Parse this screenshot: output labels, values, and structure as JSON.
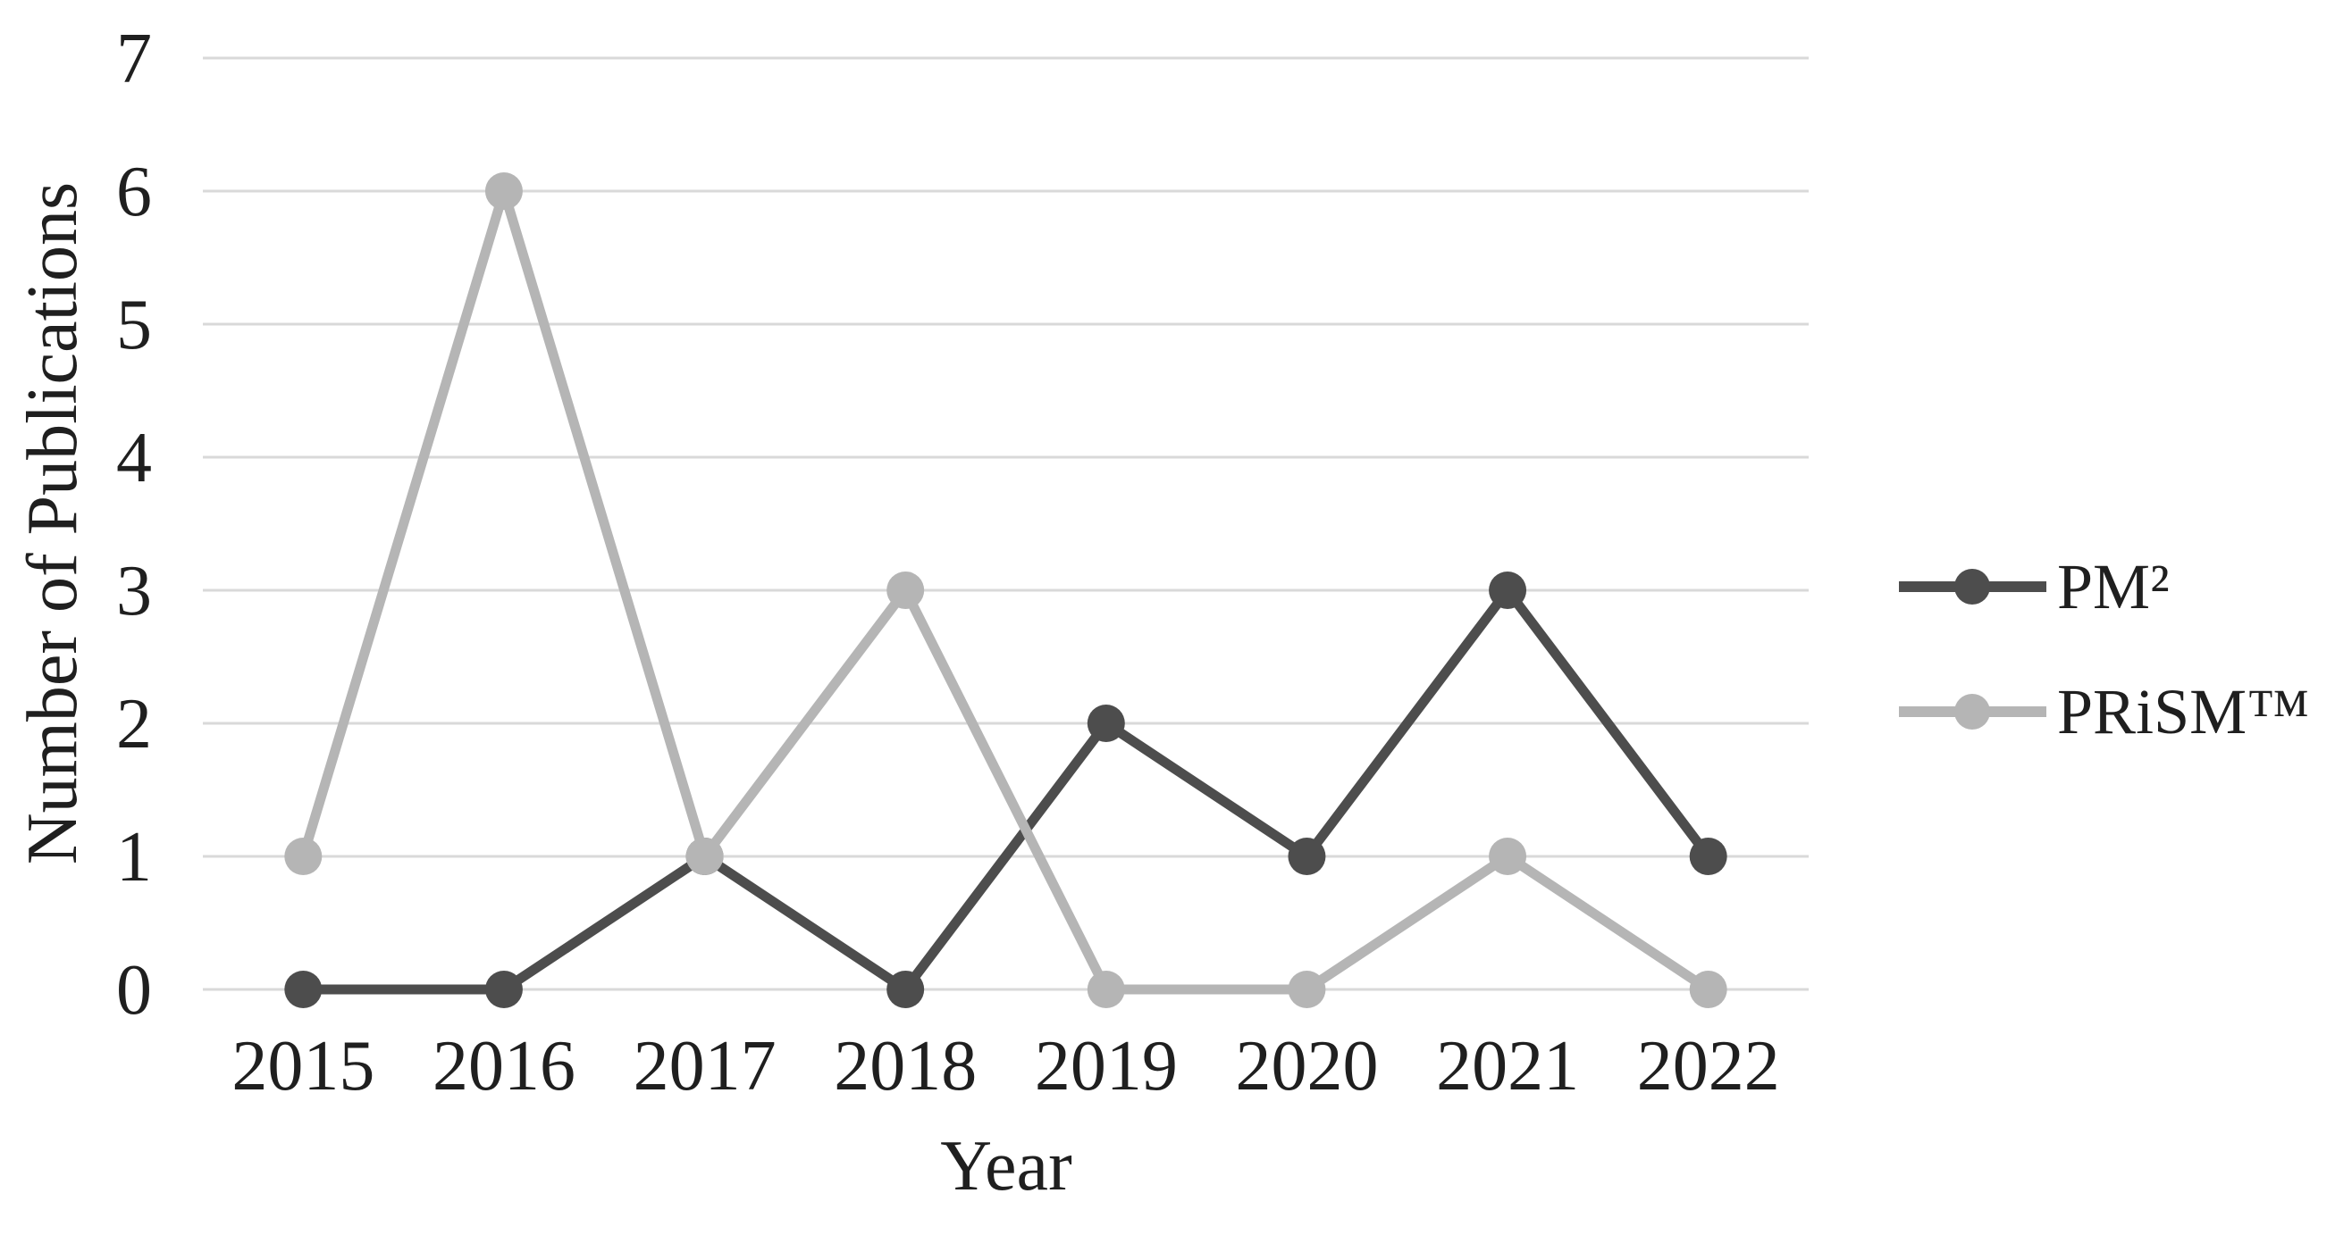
{
  "chart_data": {
    "type": "line",
    "title": "",
    "categories": [
      "2015",
      "2016",
      "2017",
      "2018",
      "2019",
      "2020",
      "2021",
      "2022"
    ],
    "series": [
      {
        "name": "PM²",
        "color": "#4d4d4d",
        "values": [
          0,
          0,
          1,
          0,
          2,
          1,
          3,
          1
        ]
      },
      {
        "name": "PRiSM™",
        "color": "#b5b5b5",
        "values": [
          1,
          6,
          1,
          3,
          0,
          0,
          1,
          0
        ]
      }
    ],
    "xlabel": "Year",
    "ylabel": "Number of Publications",
    "ylim": [
      0,
      7
    ],
    "ytick_step": 1,
    "yticks": [
      "0",
      "1",
      "2",
      "3",
      "4",
      "5",
      "6",
      "7"
    ],
    "grid": "horizontal-only",
    "gridline_color": "#d9d9d9",
    "text_color": "#1f1f1f",
    "background_color": "#ffffff",
    "legend_position": "right",
    "marker_shape": "circle"
  }
}
